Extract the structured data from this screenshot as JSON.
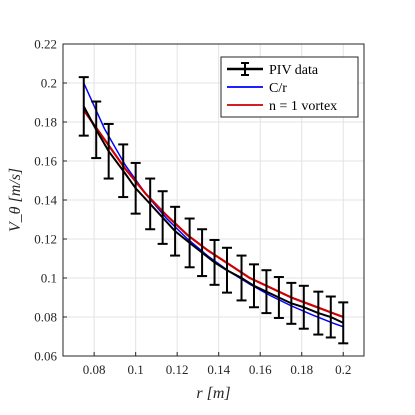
{
  "chart_data": {
    "type": "line",
    "title": "",
    "xlabel": "r [m]",
    "ylabel": "V_θ [m/s]",
    "xlim": [
      0.065,
      0.21
    ],
    "ylim": [
      0.06,
      0.22
    ],
    "xticks": [
      0.08,
      0.1,
      0.12,
      0.14,
      0.16,
      0.18,
      0.2
    ],
    "xtick_labels": [
      "0.08",
      "0.1",
      "0.12",
      "0.14",
      "0.16",
      "0.18",
      "0.2"
    ],
    "yticks": [
      0.06,
      0.08,
      0.1,
      0.12,
      0.14,
      0.16,
      0.18,
      0.2,
      0.22
    ],
    "ytick_labels": [
      "0.06",
      "0.08",
      "0.1",
      "0.12",
      "0.14",
      "0.16",
      "0.18",
      "0.2",
      "0.22"
    ],
    "grid": true,
    "legend_position": "top-right",
    "series": [
      {
        "name": "PIV data",
        "kind": "errorbar",
        "color": "#000000",
        "x": [
          0.075,
          0.081,
          0.087,
          0.094,
          0.1,
          0.107,
          0.113,
          0.119,
          0.126,
          0.132,
          0.138,
          0.144,
          0.151,
          0.157,
          0.163,
          0.169,
          0.175,
          0.181,
          0.188,
          0.194,
          0.2
        ],
        "y": [
          0.188,
          0.176,
          0.165,
          0.155,
          0.146,
          0.138,
          0.131,
          0.124,
          0.118,
          0.113,
          0.108,
          0.104,
          0.1,
          0.096,
          0.093,
          0.09,
          0.087,
          0.085,
          0.082,
          0.08,
          0.077
        ],
        "err": [
          0.015,
          0.0145,
          0.014,
          0.0135,
          0.013,
          0.013,
          0.0135,
          0.0125,
          0.0125,
          0.012,
          0.0115,
          0.0115,
          0.0115,
          0.011,
          0.011,
          0.0105,
          0.0105,
          0.011,
          0.011,
          0.0105,
          0.0105
        ]
      },
      {
        "name": "C/r",
        "kind": "line",
        "color": "#0000ff",
        "x": [
          0.075,
          0.085,
          0.095,
          0.105,
          0.115,
          0.125,
          0.135,
          0.145,
          0.155,
          0.165,
          0.175,
          0.185,
          0.195,
          0.2
        ],
        "y": [
          0.2,
          0.1765,
          0.1579,
          0.1429,
          0.1304,
          0.12,
          0.1111,
          0.1034,
          0.0968,
          0.0909,
          0.0857,
          0.0811,
          0.0769,
          0.075
        ]
      },
      {
        "name": "n = 1 vortex",
        "kind": "line",
        "color": "#cc0000",
        "x": [
          0.075,
          0.085,
          0.095,
          0.105,
          0.115,
          0.125,
          0.135,
          0.145,
          0.155,
          0.165,
          0.175,
          0.185,
          0.195,
          0.2
        ],
        "y": [
          0.186,
          0.171,
          0.156,
          0.143,
          0.132,
          0.122,
          0.114,
          0.107,
          0.1,
          0.095,
          0.09,
          0.086,
          0.082,
          0.08
        ]
      }
    ]
  }
}
